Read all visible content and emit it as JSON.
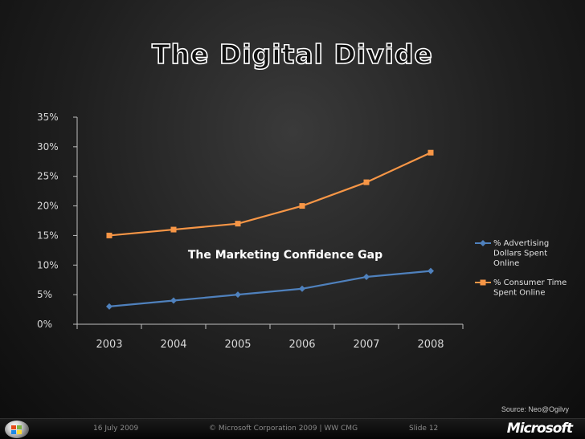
{
  "slide": {
    "title": "The Digital Divide",
    "source": "Source: Neo@Ogilvy"
  },
  "footer": {
    "date": "16 July 2009",
    "copyright": "© Microsoft Corporation 2009 | WW CMG",
    "slide_number": "Slide 12",
    "logo": "Microsoft"
  },
  "colors": {
    "series1": "#4f81bd",
    "series2": "#f79646",
    "axis": "#bfbfbf"
  },
  "chart_data": {
    "type": "line",
    "title": "",
    "xlabel": "",
    "ylabel": "",
    "x": [
      "2003",
      "2004",
      "2005",
      "2006",
      "2007",
      "2008"
    ],
    "ylim": [
      0,
      35
    ],
    "y_ticks": [
      "0%",
      "5%",
      "10%",
      "15%",
      "20%",
      "25%",
      "30%",
      "35%"
    ],
    "y_tick_values": [
      0,
      5,
      10,
      15,
      20,
      25,
      30,
      35
    ],
    "grid": false,
    "legend_position": "right",
    "annotation": "The Marketing Confidence Gap",
    "series": [
      {
        "name": "% Advertising Dollars Spent Online",
        "legend_lines": [
          "% Advertising",
          "Dollars Spent",
          "Online"
        ],
        "values": [
          3,
          4,
          5,
          6,
          8,
          9
        ],
        "marker": "diamond"
      },
      {
        "name": "% Consumer Time Spent Online",
        "legend_lines": [
          "% Consumer Time",
          "Spent Online"
        ],
        "values": [
          15,
          16,
          17,
          20,
          24,
          29
        ],
        "marker": "square"
      }
    ]
  }
}
